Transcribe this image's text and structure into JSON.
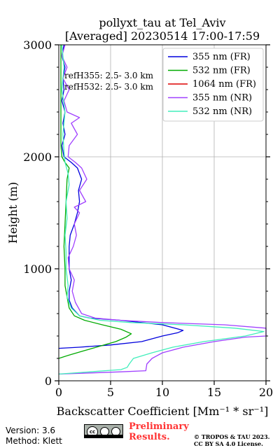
{
  "chart_data": {
    "type": "line",
    "title": "pollyxt_tau at Tel_Aviv",
    "subtitle": "[Averaged] 20230514 17:00-17:59",
    "xlabel": "Backscatter Coefficient [Mm⁻¹ * sr⁻¹]",
    "ylabel": "Height (m)",
    "xlim": [
      0,
      20
    ],
    "ylim": [
      0,
      3000
    ],
    "xticks": [
      "0",
      "5",
      "10",
      "15",
      "20"
    ],
    "yticks": [
      "0",
      "1000",
      "2000",
      "3000"
    ],
    "grid": true,
    "legend_placement": "top-right",
    "annotations": [
      "refH355:  2.5- 3.0 km",
      "refH532:  2.5- 3.0 km"
    ],
    "series": [
      {
        "name": "355 nm (FR)",
        "color": "#0000dd",
        "points": [
          [
            0,
            290
          ],
          [
            2,
            300
          ],
          [
            5,
            320
          ],
          [
            8,
            350
          ],
          [
            10,
            400
          ],
          [
            11.5,
            430
          ],
          [
            12,
            450
          ],
          [
            10,
            500
          ],
          [
            6,
            540
          ],
          [
            3,
            560
          ],
          [
            2,
            580
          ],
          [
            1.3,
            650
          ],
          [
            1,
            720
          ],
          [
            1,
            800
          ],
          [
            1.2,
            900
          ],
          [
            1,
            1000
          ],
          [
            1,
            1100
          ],
          [
            1,
            1200
          ],
          [
            1.1,
            1300
          ],
          [
            1.5,
            1400
          ],
          [
            1.8,
            1500
          ],
          [
            2,
            1600
          ],
          [
            1.9,
            1700
          ],
          [
            2.2,
            1800
          ],
          [
            2,
            1850
          ],
          [
            1.8,
            1900
          ],
          [
            1.2,
            1950
          ],
          [
            0.5,
            2000
          ],
          [
            0.3,
            2100
          ],
          [
            0.6,
            2200
          ],
          [
            0.4,
            2300
          ],
          [
            0.6,
            2400
          ],
          [
            0.3,
            2500
          ],
          [
            0.5,
            2600
          ],
          [
            0.4,
            2700
          ],
          [
            0.6,
            2800
          ],
          [
            0.3,
            2900
          ],
          [
            0.5,
            3000
          ]
        ]
      },
      {
        "name": "532 nm (FR)",
        "color": "#00aa00",
        "points": [
          [
            0,
            200
          ],
          [
            1,
            230
          ],
          [
            2.5,
            270
          ],
          [
            4,
            310
          ],
          [
            5.5,
            350
          ],
          [
            6.5,
            390
          ],
          [
            7,
            420
          ],
          [
            6,
            460
          ],
          [
            4.2,
            500
          ],
          [
            2.5,
            540
          ],
          [
            1.5,
            580
          ],
          [
            1,
            650
          ],
          [
            0.8,
            750
          ],
          [
            0.6,
            850
          ],
          [
            0.6,
            1000
          ],
          [
            0.5,
            1200
          ],
          [
            0.6,
            1400
          ],
          [
            0.7,
            1600
          ],
          [
            0.8,
            1800
          ],
          [
            1,
            1900
          ],
          [
            0.6,
            1950
          ],
          [
            0.3,
            2000
          ],
          [
            0.2,
            2100
          ],
          [
            0.2,
            2300
          ],
          [
            0.2,
            2500
          ],
          [
            0.2,
            2700
          ],
          [
            0.2,
            3000
          ]
        ]
      },
      {
        "name": "1064 nm (FR)",
        "color": "#dd0000",
        "points": []
      },
      {
        "name": "355 nm (NR)",
        "color": "#a040ff",
        "points": [
          [
            0,
            60
          ],
          [
            3,
            70
          ],
          [
            6,
            80
          ],
          [
            8.4,
            90
          ],
          [
            8.5,
            150
          ],
          [
            9,
            200
          ],
          [
            10,
            250
          ],
          [
            12,
            300
          ],
          [
            15,
            350
          ],
          [
            18,
            390
          ],
          [
            20,
            400
          ],
          [
            20,
            430
          ],
          [
            20,
            450
          ],
          [
            20,
            470
          ],
          [
            16,
            500
          ],
          [
            10,
            520
          ],
          [
            6,
            540
          ],
          [
            3.5,
            560
          ],
          [
            2.2,
            600
          ],
          [
            1.6,
            700
          ],
          [
            1.3,
            800
          ],
          [
            1.5,
            900
          ],
          [
            1,
            1000
          ],
          [
            0.9,
            1100
          ],
          [
            1.4,
            1200
          ],
          [
            1.7,
            1300
          ],
          [
            1.5,
            1400
          ],
          [
            2,
            1500
          ],
          [
            1.5,
            1550
          ],
          [
            2.6,
            1600
          ],
          [
            2,
            1700
          ],
          [
            2.7,
            1800
          ],
          [
            2.2,
            1900
          ],
          [
            1.6,
            1950
          ],
          [
            0.9,
            2000
          ],
          [
            1,
            2100
          ],
          [
            1.8,
            2200
          ],
          [
            1.2,
            2300
          ],
          [
            2,
            2350
          ],
          [
            0.8,
            2400
          ],
          [
            0.5,
            2500
          ],
          [
            1,
            2600
          ],
          [
            0.4,
            2700
          ],
          [
            0.8,
            2800
          ],
          [
            0.3,
            2900
          ],
          [
            0.6,
            3000
          ]
        ]
      },
      {
        "name": "532 nm (NR)",
        "color": "#40eebb",
        "points": [
          [
            0,
            60
          ],
          [
            3,
            80
          ],
          [
            6,
            100
          ],
          [
            6.6,
            120
          ],
          [
            6.8,
            150
          ],
          [
            7.2,
            200
          ],
          [
            9,
            250
          ],
          [
            11,
            300
          ],
          [
            14,
            350
          ],
          [
            18,
            400
          ],
          [
            19.8,
            440
          ],
          [
            17,
            470
          ],
          [
            12,
            500
          ],
          [
            7,
            520
          ],
          [
            4,
            540
          ],
          [
            2,
            580
          ],
          [
            1.2,
            650
          ],
          [
            0.8,
            750
          ],
          [
            0.9,
            850
          ],
          [
            0.7,
            1000
          ],
          [
            0.7,
            1150
          ],
          [
            0.6,
            1300
          ],
          [
            0.8,
            1450
          ],
          [
            0.7,
            1600
          ],
          [
            1,
            1750
          ],
          [
            0.9,
            1850
          ],
          [
            0.6,
            1950
          ],
          [
            0.5,
            2050
          ],
          [
            0.4,
            2200
          ],
          [
            0.6,
            2400
          ],
          [
            0.3,
            2600
          ],
          [
            0.5,
            2800
          ],
          [
            0.3,
            3000
          ]
        ]
      }
    ]
  },
  "footer": {
    "version": "Version: 3.6",
    "method": "Method: Klett",
    "preliminary_line1": "Preliminary",
    "preliminary_line2": "Results.",
    "copyright_line1": "© TROPOS & TAU 2023.",
    "copyright_line2": "CC BY SA 4.0 License.",
    "license_badge": "cc-by-sa-badge"
  }
}
